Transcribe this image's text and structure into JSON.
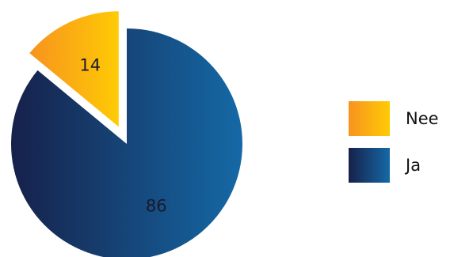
{
  "chart_data": {
    "type": "pie",
    "title": "",
    "slices": [
      {
        "label": "Nee",
        "value": 14,
        "color_start": "#F7931E",
        "color_end": "#FFCB05",
        "exploded": true
      },
      {
        "label": "Ja",
        "value": 86,
        "color_start": "#16214A",
        "color_end": "#1569A6",
        "exploded": false
      }
    ],
    "legend": {
      "position": "right",
      "order": [
        "Nee",
        "Ja"
      ]
    },
    "data_labels": true
  }
}
